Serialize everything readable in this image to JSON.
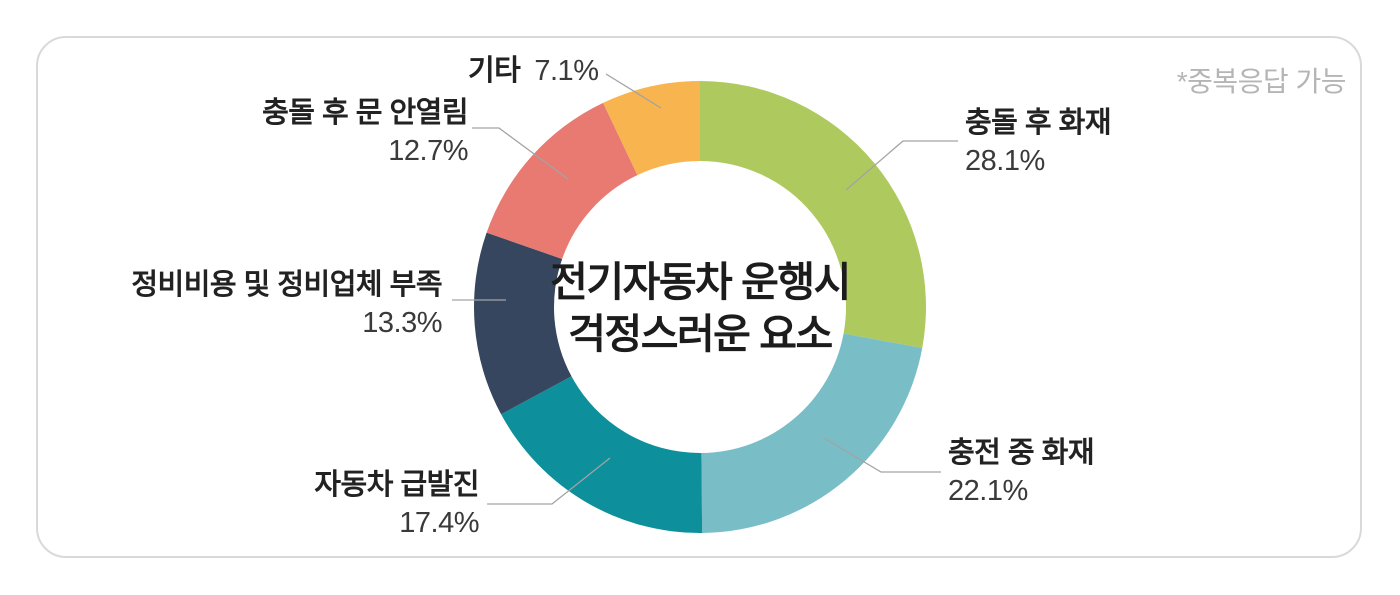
{
  "note": "*중복응답 가능",
  "center_title": {
    "line1": "전기자동차 운행시",
    "line2": "걱정스러운 요소"
  },
  "chart_data": {
    "type": "pie",
    "subtype": "donut",
    "title": "전기자동차 운행시 걱정스러운 요소",
    "annotation": "*중복응답 가능",
    "start_angle_deg": -90,
    "direction": "clockwise",
    "unit": "%",
    "segments": [
      {
        "label": "충돌 후 화재",
        "value": 28.1,
        "color": "#aeca5f"
      },
      {
        "label": "충전 중 화재",
        "value": 22.1,
        "color": "#79bdc7"
      },
      {
        "label": "자동차 급발진",
        "value": 17.4,
        "color": "#0d8f9c"
      },
      {
        "label": "정비비용 및 정비업체 부족",
        "value": 13.3,
        "color": "#36465e"
      },
      {
        "label": "충돌 후 문 안열림",
        "value": 12.7,
        "color": "#e87a72"
      },
      {
        "label": "기타",
        "value": 7.1,
        "color": "#f8b44f"
      }
    ]
  }
}
